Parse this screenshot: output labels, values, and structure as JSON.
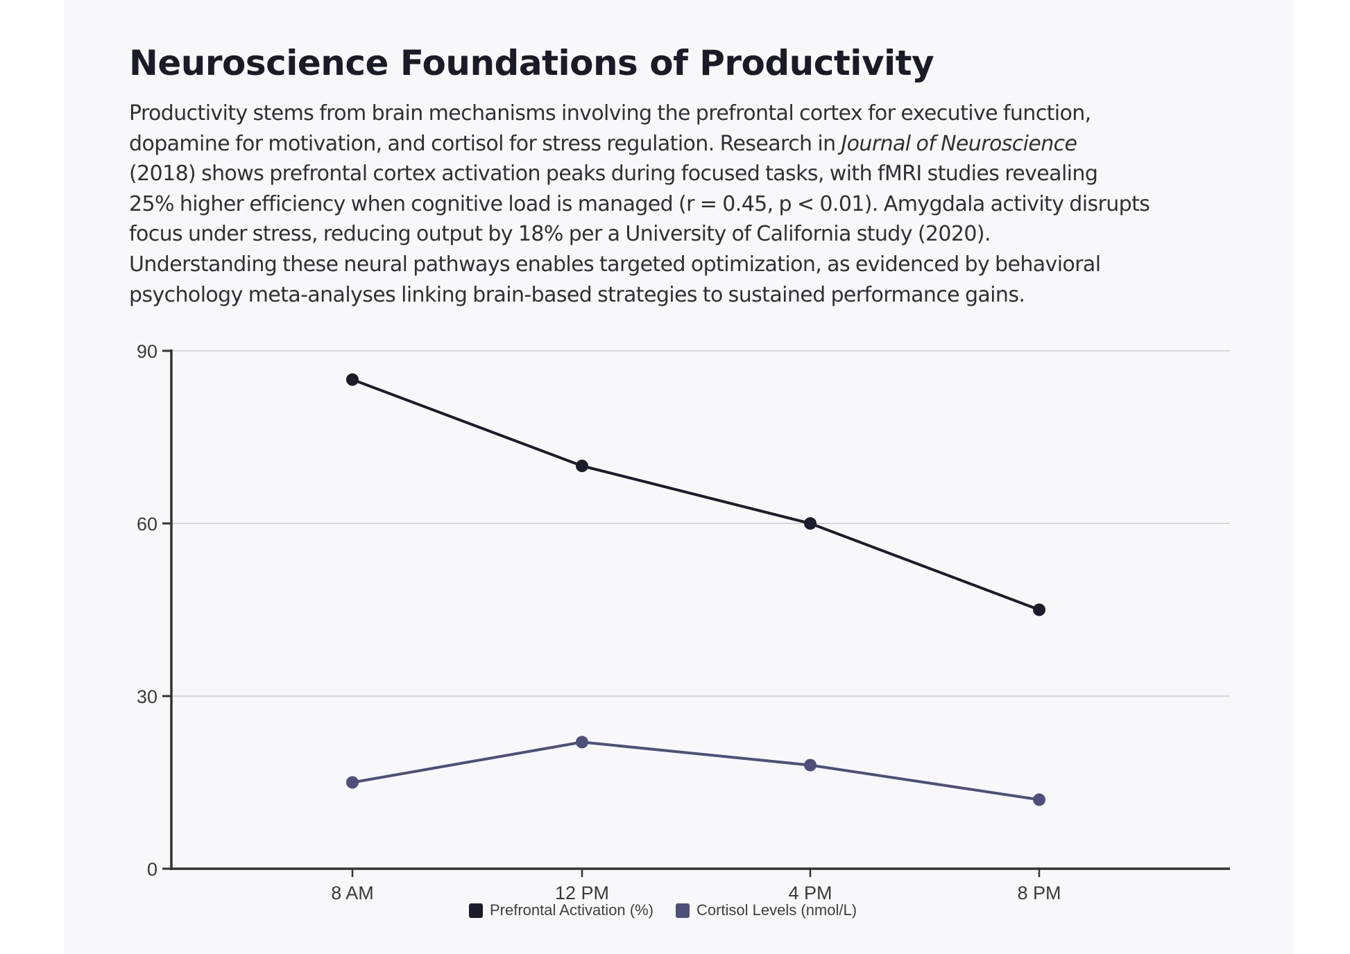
{
  "page": {
    "title": "Neuroscience Foundations of Productivity",
    "paragraph_lines": [
      [
        {
          "text": "Productivity stems from brain mechanisms involving the prefrontal cortex for executive function,"
        }
      ],
      [
        {
          "text": "dopamine for motivation, and cortisol for stress regulation. Research in "
        },
        {
          "text": "Journal of Neuroscience",
          "italic": true
        }
      ],
      [
        {
          "text": "(2018) shows prefrontal cortex activation peaks during focused tasks, with fMRI studies revealing"
        }
      ],
      [
        {
          "text": "25% higher efficiency when cognitive load is managed (r = 0.45, p < 0.01). Amygdala activity disrupts"
        }
      ],
      [
        {
          "text": "focus under stress, reducing output by 18% per a University of California study (2020)."
        }
      ],
      [
        {
          "text": "Understanding these neural pathways enables targeted optimization, as evidenced by behavioral"
        }
      ],
      [
        {
          "text": "psychology meta-analyses linking brain-based strategies to sustained performance gains."
        }
      ]
    ]
  },
  "chart_data": {
    "type": "line",
    "title": "",
    "xlabel": "",
    "ylabel": "",
    "categories": [
      "8 AM",
      "12 PM",
      "4 PM",
      "8 PM"
    ],
    "ylim": [
      0,
      90
    ],
    "yticks": [
      0,
      30,
      60,
      90
    ],
    "grid": true,
    "legend_position": "bottom-center",
    "series": [
      {
        "name": "Prefrontal Activation (%)",
        "values": [
          85,
          70,
          60,
          45
        ],
        "color": "#1c1c2a"
      },
      {
        "name": "Cortisol Levels (nmol/L)",
        "values": [
          15,
          22,
          18,
          12
        ],
        "color": "#4e4f7a"
      }
    ]
  }
}
